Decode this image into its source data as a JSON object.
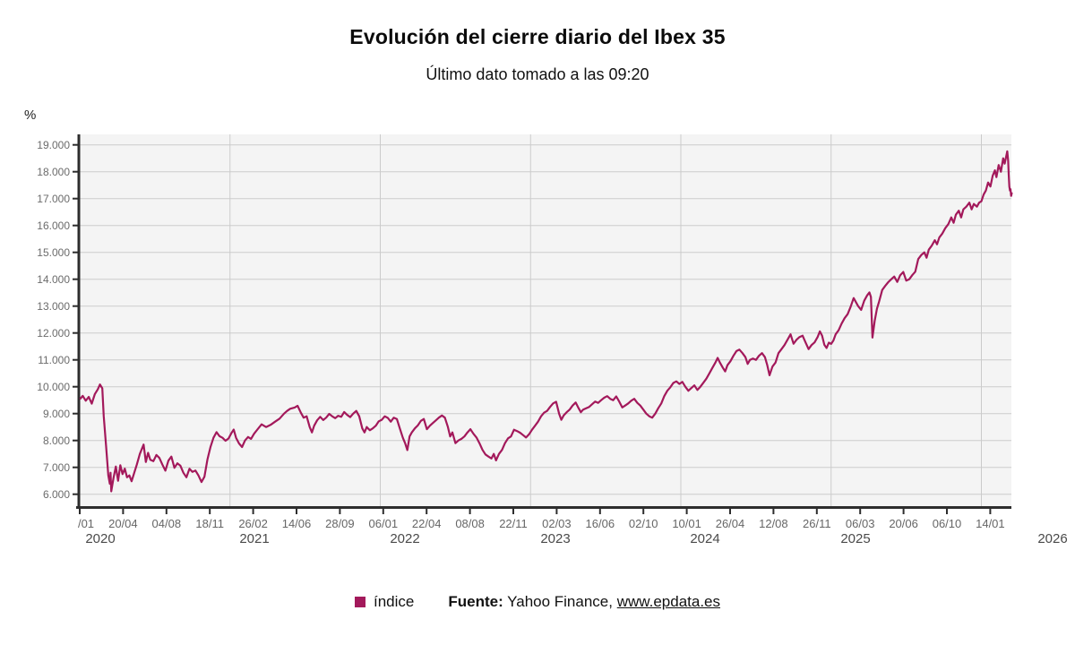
{
  "title": "Evolución del cierre diario del Ibex 35",
  "subtitle": "Último dato tomado a las 09:20",
  "y_axis": {
    "unit": "%"
  },
  "legend": {
    "label": "índice",
    "color": "#a3195b"
  },
  "source": {
    "prefix": "Fuente:",
    "publisher": "Yahoo Finance,",
    "link": "www.epdata.es"
  },
  "chart_data": {
    "type": "line",
    "title": "Evolución del cierre diario del Ibex 35",
    "subtitle": "Último dato tomado a las 09:20",
    "series_name": "índice",
    "line_color": "#a3195b",
    "plot_bg": "#f4f4f4",
    "grid_color": "#cbcbcb",
    "axis_color": "#2d2d2d",
    "ylabel": "%",
    "ylim": [
      5430,
      19400
    ],
    "y_tick_labels": [
      "19.000",
      "18.000",
      "17.000",
      "16.000",
      "15.000",
      "14.000",
      "13.000",
      "12.000",
      "11.000",
      "10.000",
      "9.000",
      "8.000",
      "7.000",
      "6.000"
    ],
    "y_tick_values": [
      19000,
      18000,
      17000,
      16000,
      15000,
      14000,
      13000,
      12000,
      11000,
      10000,
      9000,
      8000,
      7000,
      6000
    ],
    "x_tick_labels": [
      "/01",
      "20/04",
      "04/08",
      "18/11",
      "26/02",
      "14/06",
      "28/09",
      "06/01",
      "22/04",
      "08/08",
      "22/11",
      "02/03",
      "16/06",
      "02/10",
      "10/01",
      "26/04",
      "12/08",
      "26/11",
      "06/03",
      "20/06",
      "06/10",
      "14/01"
    ],
    "year_labels": [
      "2020",
      "2021",
      "2022",
      "2023",
      "2024",
      "2025",
      "2026"
    ],
    "grid_years": [
      2021,
      2022,
      2023,
      2024,
      2025,
      2026
    ],
    "xlim_years": [
      2020.0,
      2026.2
    ],
    "points": [
      [
        2020.005,
        9560
      ],
      [
        2020.02,
        9660
      ],
      [
        2020.04,
        9480
      ],
      [
        2020.06,
        9620
      ],
      [
        2020.08,
        9370
      ],
      [
        2020.1,
        9720
      ],
      [
        2020.12,
        9900
      ],
      [
        2020.135,
        10083
      ],
      [
        2020.15,
        9940
      ],
      [
        2020.16,
        8900
      ],
      [
        2020.175,
        7800
      ],
      [
        2020.19,
        6700
      ],
      [
        2020.2,
        6390
      ],
      [
        2020.205,
        6800
      ],
      [
        2020.21,
        6107
      ],
      [
        2020.225,
        6600
      ],
      [
        2020.24,
        7030
      ],
      [
        2020.255,
        6500
      ],
      [
        2020.27,
        7080
      ],
      [
        2020.285,
        6750
      ],
      [
        2020.3,
        6950
      ],
      [
        2020.315,
        6629
      ],
      [
        2020.33,
        6700
      ],
      [
        2020.345,
        6482
      ],
      [
        2020.36,
        6750
      ],
      [
        2020.38,
        7100
      ],
      [
        2020.4,
        7500
      ],
      [
        2020.425,
        7845
      ],
      [
        2020.44,
        7200
      ],
      [
        2020.455,
        7540
      ],
      [
        2020.47,
        7280
      ],
      [
        2020.49,
        7230
      ],
      [
        2020.51,
        7460
      ],
      [
        2020.53,
        7350
      ],
      [
        2020.55,
        7100
      ],
      [
        2020.57,
        6877
      ],
      [
        2020.59,
        7250
      ],
      [
        2020.61,
        7400
      ],
      [
        2020.63,
        6985
      ],
      [
        2020.65,
        7150
      ],
      [
        2020.67,
        7060
      ],
      [
        2020.69,
        6800
      ],
      [
        2020.71,
        6630
      ],
      [
        2020.73,
        6950
      ],
      [
        2020.75,
        6830
      ],
      [
        2020.77,
        6880
      ],
      [
        2020.79,
        6700
      ],
      [
        2020.81,
        6452
      ],
      [
        2020.83,
        6650
      ],
      [
        2020.85,
        7300
      ],
      [
        2020.87,
        7750
      ],
      [
        2020.89,
        8100
      ],
      [
        2020.91,
        8310
      ],
      [
        2020.93,
        8160
      ],
      [
        2020.95,
        8100
      ],
      [
        2020.97,
        7990
      ],
      [
        2020.99,
        8074
      ],
      [
        2021.01,
        8280
      ],
      [
        2021.025,
        8407
      ],
      [
        2021.04,
        8100
      ],
      [
        2021.06,
        7890
      ],
      [
        2021.08,
        7758
      ],
      [
        2021.1,
        8000
      ],
      [
        2021.12,
        8130
      ],
      [
        2021.14,
        8060
      ],
      [
        2021.16,
        8250
      ],
      [
        2021.18,
        8390
      ],
      [
        2021.21,
        8600
      ],
      [
        2021.24,
        8500
      ],
      [
        2021.27,
        8580
      ],
      [
        2021.3,
        8700
      ],
      [
        2021.33,
        8815
      ],
      [
        2021.36,
        9000
      ],
      [
        2021.38,
        9100
      ],
      [
        2021.4,
        9180
      ],
      [
        2021.43,
        9225
      ],
      [
        2021.45,
        9290
      ],
      [
        2021.47,
        9050
      ],
      [
        2021.49,
        8850
      ],
      [
        2021.51,
        8900
      ],
      [
        2021.53,
        8500
      ],
      [
        2021.545,
        8300
      ],
      [
        2021.56,
        8550
      ],
      [
        2021.58,
        8750
      ],
      [
        2021.6,
        8880
      ],
      [
        2021.62,
        8760
      ],
      [
        2021.64,
        8850
      ],
      [
        2021.66,
        8990
      ],
      [
        2021.68,
        8900
      ],
      [
        2021.7,
        8830
      ],
      [
        2021.72,
        8920
      ],
      [
        2021.74,
        8880
      ],
      [
        2021.76,
        9060
      ],
      [
        2021.78,
        8950
      ],
      [
        2021.8,
        8870
      ],
      [
        2021.82,
        9000
      ],
      [
        2021.84,
        9100
      ],
      [
        2021.86,
        8900
      ],
      [
        2021.88,
        8450
      ],
      [
        2021.895,
        8300
      ],
      [
        2021.91,
        8500
      ],
      [
        2021.93,
        8380
      ],
      [
        2021.95,
        8450
      ],
      [
        2021.97,
        8550
      ],
      [
        2021.99,
        8714
      ],
      [
        2022.01,
        8770
      ],
      [
        2022.03,
        8900
      ],
      [
        2022.05,
        8840
      ],
      [
        2022.07,
        8700
      ],
      [
        2022.09,
        8850
      ],
      [
        2022.11,
        8800
      ],
      [
        2022.13,
        8450
      ],
      [
        2022.15,
        8100
      ],
      [
        2022.165,
        7900
      ],
      [
        2022.18,
        7645
      ],
      [
        2022.195,
        8150
      ],
      [
        2022.21,
        8300
      ],
      [
        2022.23,
        8450
      ],
      [
        2022.25,
        8560
      ],
      [
        2022.27,
        8730
      ],
      [
        2022.29,
        8800
      ],
      [
        2022.31,
        8420
      ],
      [
        2022.33,
        8550
      ],
      [
        2022.35,
        8650
      ],
      [
        2022.37,
        8750
      ],
      [
        2022.39,
        8850
      ],
      [
        2022.41,
        8930
      ],
      [
        2022.43,
        8850
      ],
      [
        2022.45,
        8500
      ],
      [
        2022.465,
        8150
      ],
      [
        2022.48,
        8300
      ],
      [
        2022.5,
        7900
      ],
      [
        2022.52,
        8000
      ],
      [
        2022.54,
        8060
      ],
      [
        2022.56,
        8150
      ],
      [
        2022.58,
        8300
      ],
      [
        2022.6,
        8420
      ],
      [
        2022.62,
        8250
      ],
      [
        2022.64,
        8110
      ],
      [
        2022.66,
        7900
      ],
      [
        2022.68,
        7650
      ],
      [
        2022.7,
        7480
      ],
      [
        2022.72,
        7400
      ],
      [
        2022.74,
        7330
      ],
      [
        2022.755,
        7500
      ],
      [
        2022.77,
        7261
      ],
      [
        2022.79,
        7500
      ],
      [
        2022.81,
        7650
      ],
      [
        2022.83,
        7900
      ],
      [
        2022.85,
        8080
      ],
      [
        2022.87,
        8150
      ],
      [
        2022.89,
        8400
      ],
      [
        2022.91,
        8350
      ],
      [
        2022.93,
        8290
      ],
      [
        2022.95,
        8200
      ],
      [
        2022.97,
        8110
      ],
      [
        2022.99,
        8229
      ],
      [
        2023.01,
        8400
      ],
      [
        2023.03,
        8550
      ],
      [
        2023.05,
        8700
      ],
      [
        2023.07,
        8900
      ],
      [
        2023.09,
        9034
      ],
      [
        2023.11,
        9100
      ],
      [
        2023.13,
        9250
      ],
      [
        2023.15,
        9380
      ],
      [
        2023.17,
        9440
      ],
      [
        2023.19,
        9000
      ],
      [
        2023.205,
        8770
      ],
      [
        2023.22,
        8930
      ],
      [
        2023.24,
        9050
      ],
      [
        2023.26,
        9150
      ],
      [
        2023.28,
        9300
      ],
      [
        2023.3,
        9415
      ],
      [
        2023.32,
        9200
      ],
      [
        2023.335,
        9050
      ],
      [
        2023.35,
        9150
      ],
      [
        2023.37,
        9200
      ],
      [
        2023.39,
        9250
      ],
      [
        2023.41,
        9350
      ],
      [
        2023.43,
        9450
      ],
      [
        2023.45,
        9400
      ],
      [
        2023.47,
        9500
      ],
      [
        2023.49,
        9590
      ],
      [
        2023.51,
        9650
      ],
      [
        2023.53,
        9550
      ],
      [
        2023.55,
        9500
      ],
      [
        2023.57,
        9641
      ],
      [
        2023.59,
        9450
      ],
      [
        2023.61,
        9230
      ],
      [
        2023.63,
        9300
      ],
      [
        2023.65,
        9380
      ],
      [
        2023.67,
        9480
      ],
      [
        2023.69,
        9550
      ],
      [
        2023.71,
        9400
      ],
      [
        2023.73,
        9300
      ],
      [
        2023.75,
        9150
      ],
      [
        2023.77,
        9000
      ],
      [
        2023.79,
        8900
      ],
      [
        2023.81,
        8850
      ],
      [
        2023.83,
        9000
      ],
      [
        2023.85,
        9200
      ],
      [
        2023.87,
        9380
      ],
      [
        2023.89,
        9650
      ],
      [
        2023.91,
        9850
      ],
      [
        2023.93,
        9980
      ],
      [
        2023.95,
        10140
      ],
      [
        2023.97,
        10200
      ],
      [
        2023.99,
        10102
      ],
      [
        2024.01,
        10180
      ],
      [
        2024.03,
        10000
      ],
      [
        2024.05,
        9850
      ],
      [
        2024.07,
        9950
      ],
      [
        2024.09,
        10050
      ],
      [
        2024.11,
        9880
      ],
      [
        2024.13,
        10000
      ],
      [
        2024.15,
        10150
      ],
      [
        2024.17,
        10300
      ],
      [
        2024.19,
        10500
      ],
      [
        2024.21,
        10700
      ],
      [
        2024.23,
        10900
      ],
      [
        2024.245,
        11074
      ],
      [
        2024.26,
        10900
      ],
      [
        2024.28,
        10700
      ],
      [
        2024.295,
        10570
      ],
      [
        2024.31,
        10800
      ],
      [
        2024.33,
        10950
      ],
      [
        2024.35,
        11150
      ],
      [
        2024.37,
        11327
      ],
      [
        2024.39,
        11380
      ],
      [
        2024.41,
        11250
      ],
      [
        2024.43,
        11100
      ],
      [
        2024.445,
        10850
      ],
      [
        2024.46,
        11000
      ],
      [
        2024.48,
        11050
      ],
      [
        2024.5,
        11000
      ],
      [
        2024.52,
        11150
      ],
      [
        2024.54,
        11250
      ],
      [
        2024.56,
        11100
      ],
      [
        2024.575,
        10800
      ],
      [
        2024.59,
        10425
      ],
      [
        2024.61,
        10750
      ],
      [
        2024.63,
        10900
      ],
      [
        2024.65,
        11250
      ],
      [
        2024.67,
        11400
      ],
      [
        2024.69,
        11550
      ],
      [
        2024.71,
        11750
      ],
      [
        2024.73,
        11950
      ],
      [
        2024.75,
        11600
      ],
      [
        2024.77,
        11750
      ],
      [
        2024.79,
        11850
      ],
      [
        2024.81,
        11900
      ],
      [
        2024.83,
        11650
      ],
      [
        2024.85,
        11400
      ],
      [
        2024.87,
        11550
      ],
      [
        2024.89,
        11650
      ],
      [
        2024.91,
        11850
      ],
      [
        2024.925,
        12060
      ],
      [
        2024.94,
        11900
      ],
      [
        2024.955,
        11560
      ],
      [
        2024.97,
        11440
      ],
      [
        2024.985,
        11640
      ],
      [
        2025.0,
        11595
      ],
      [
        2025.015,
        11720
      ],
      [
        2025.03,
        11950
      ],
      [
        2025.05,
        12100
      ],
      [
        2025.07,
        12350
      ],
      [
        2025.09,
        12550
      ],
      [
        2025.11,
        12700
      ],
      [
        2025.13,
        12980
      ],
      [
        2025.15,
        13300
      ],
      [
        2025.165,
        13150
      ],
      [
        2025.18,
        13000
      ],
      [
        2025.2,
        12860
      ],
      [
        2025.22,
        13200
      ],
      [
        2025.24,
        13400
      ],
      [
        2025.255,
        13510
      ],
      [
        2025.265,
        13340
      ],
      [
        2025.275,
        11830
      ],
      [
        2025.29,
        12450
      ],
      [
        2025.305,
        12900
      ],
      [
        2025.32,
        13180
      ],
      [
        2025.34,
        13600
      ],
      [
        2025.36,
        13750
      ],
      [
        2025.38,
        13890
      ],
      [
        2025.4,
        14000
      ],
      [
        2025.42,
        14100
      ],
      [
        2025.44,
        13900
      ],
      [
        2025.46,
        14150
      ],
      [
        2025.48,
        14270
      ],
      [
        2025.5,
        13950
      ],
      [
        2025.52,
        14000
      ],
      [
        2025.54,
        14150
      ],
      [
        2025.56,
        14280
      ],
      [
        2025.58,
        14750
      ],
      [
        2025.6,
        14900
      ],
      [
        2025.62,
        15000
      ],
      [
        2025.635,
        14800
      ],
      [
        2025.65,
        15100
      ],
      [
        2025.67,
        15250
      ],
      [
        2025.69,
        15450
      ],
      [
        2025.705,
        15300
      ],
      [
        2025.72,
        15550
      ],
      [
        2025.74,
        15700
      ],
      [
        2025.76,
        15900
      ],
      [
        2025.78,
        16050
      ],
      [
        2025.8,
        16300
      ],
      [
        2025.815,
        16100
      ],
      [
        2025.83,
        16400
      ],
      [
        2025.85,
        16550
      ],
      [
        2025.865,
        16300
      ],
      [
        2025.88,
        16600
      ],
      [
        2025.9,
        16700
      ],
      [
        2025.92,
        16850
      ],
      [
        2025.935,
        16600
      ],
      [
        2025.95,
        16800
      ],
      [
        2025.97,
        16700
      ],
      [
        2025.985,
        16850
      ],
      [
        2026.0,
        16900
      ],
      [
        2026.015,
        17150
      ],
      [
        2026.03,
        17300
      ],
      [
        2026.045,
        17600
      ],
      [
        2026.06,
        17450
      ],
      [
        2026.075,
        17850
      ],
      [
        2026.09,
        18050
      ],
      [
        2026.1,
        17800
      ],
      [
        2026.115,
        18250
      ],
      [
        2026.13,
        18000
      ],
      [
        2026.145,
        18500
      ],
      [
        2026.155,
        18300
      ],
      [
        2026.172,
        18760
      ],
      [
        2026.178,
        18400
      ],
      [
        2026.182,
        17900
      ],
      [
        2026.186,
        17450
      ],
      [
        2026.19,
        17300
      ],
      [
        2026.194,
        17350
      ],
      [
        2026.198,
        17100
      ],
      [
        2026.202,
        17200
      ]
    ]
  }
}
